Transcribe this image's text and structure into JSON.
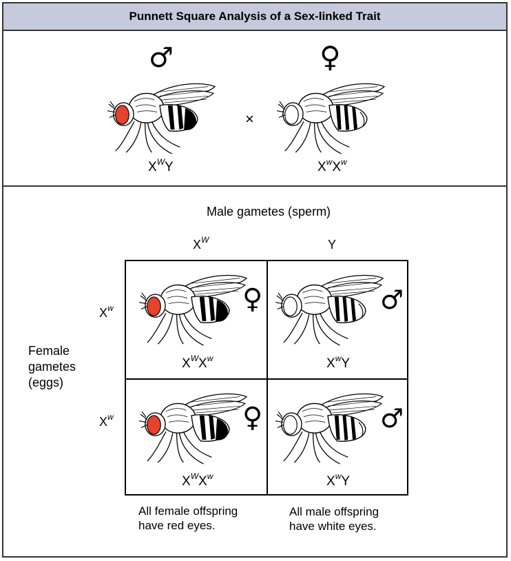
{
  "title": "Punnett Square Analysis of a Sex-linked Trait",
  "colors": {
    "title_bg": "#c5cbdc",
    "red_eye": "#e8412c",
    "border": "#333333"
  },
  "symbols": {
    "male": "♂",
    "female": "♀",
    "cross": "×"
  },
  "parents": {
    "male": {
      "base": "X",
      "allele": "W",
      "rest": "Y"
    },
    "female": {
      "base": "X",
      "allele": "w",
      "base2": "X",
      "allele2": "w"
    }
  },
  "male_gametes_label": "Male gametes (sperm)",
  "male_gametes": {
    "g1": {
      "base": "X",
      "allele": "W"
    },
    "g2": {
      "base": "Y"
    }
  },
  "female_gametes_label": "Female\ngametes\n(eggs)",
  "female_gametes": {
    "g1": {
      "base": "X",
      "allele": "w"
    },
    "g2": {
      "base": "X",
      "allele": "w"
    }
  },
  "offspring": {
    "c11": {
      "a": "X",
      "aa": "W",
      "b": "X",
      "bb": "w"
    },
    "c12": {
      "a": "X",
      "aa": "w",
      "b": "Y"
    },
    "c21": {
      "a": "X",
      "aa": "W",
      "b": "X",
      "bb": "w"
    },
    "c22": {
      "a": "X",
      "aa": "w",
      "b": "Y"
    }
  },
  "notes": {
    "female": "All female offspring\nhave red eyes.",
    "male": "All male offspring\nhave white eyes."
  }
}
